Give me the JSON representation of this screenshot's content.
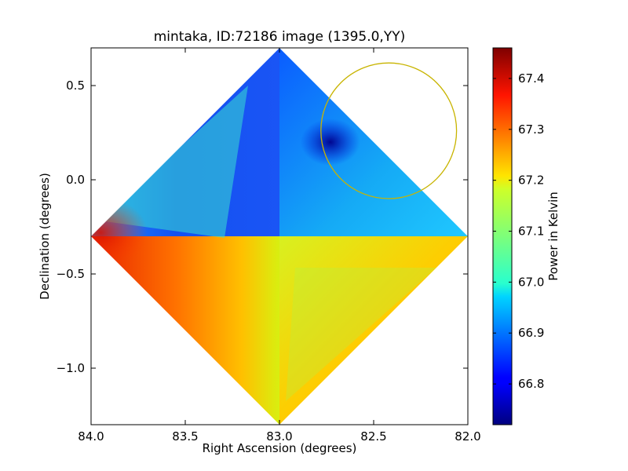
{
  "chart_data": {
    "type": "heatmap",
    "title": "mintaka, ID:72186 image (1395.0,YY)",
    "xlabel": "Right Ascension (degrees)",
    "ylabel": "Declination (degrees)",
    "xlim": [
      84.0,
      82.0
    ],
    "ylim": [
      -1.3,
      0.7
    ],
    "x_ticks": [
      84.0,
      83.5,
      83.0,
      82.5,
      82.0
    ],
    "x_tick_labels": [
      "84.0",
      "83.5",
      "83.0",
      "82.5",
      "82.0"
    ],
    "y_ticks": [
      0.5,
      0.0,
      -0.5,
      -1.0
    ],
    "y_tick_labels": [
      "0.5",
      "0.0",
      "−0.5",
      "−1.0"
    ],
    "colorbar": {
      "label": "Power in Kelvin",
      "colormap": "jet",
      "range": [
        66.72,
        67.46
      ],
      "ticks": [
        66.8,
        66.9,
        67.0,
        67.1,
        67.2,
        67.3,
        67.4
      ],
      "tick_labels": [
        "66.8",
        "66.9",
        "67.0",
        "67.1",
        "67.2",
        "67.3",
        "67.4"
      ]
    },
    "footprint": {
      "shape": "diamond",
      "center": [
        83.0,
        -0.3
      ],
      "vertices": [
        [
          83.0,
          0.7
        ],
        [
          82.0,
          -0.3
        ],
        [
          83.0,
          -1.3
        ],
        [
          84.0,
          -0.3
        ]
      ]
    },
    "regions": [
      {
        "quadrant": "north",
        "value_range": [
          66.8,
          66.85
        ]
      },
      {
        "quadrant": "east",
        "value_range": [
          67.2,
          67.38
        ]
      },
      {
        "quadrant": "south",
        "value_range": [
          67.15,
          67.38
        ]
      },
      {
        "quadrant": "west",
        "value_range": [
          66.85,
          66.9
        ]
      },
      {
        "quadrant": "north-east edge",
        "value_range": [
          66.9,
          67.05
        ]
      }
    ],
    "minimum": {
      "ra": 82.73,
      "dec": 0.2,
      "value": 66.72
    },
    "maximum": {
      "ra": 83.95,
      "dec": -0.28,
      "value": 67.4
    },
    "annotations": [
      {
        "type": "circle",
        "center": [
          82.42,
          0.26
        ],
        "radius_deg": 0.36,
        "color": "#c8b400"
      }
    ]
  }
}
